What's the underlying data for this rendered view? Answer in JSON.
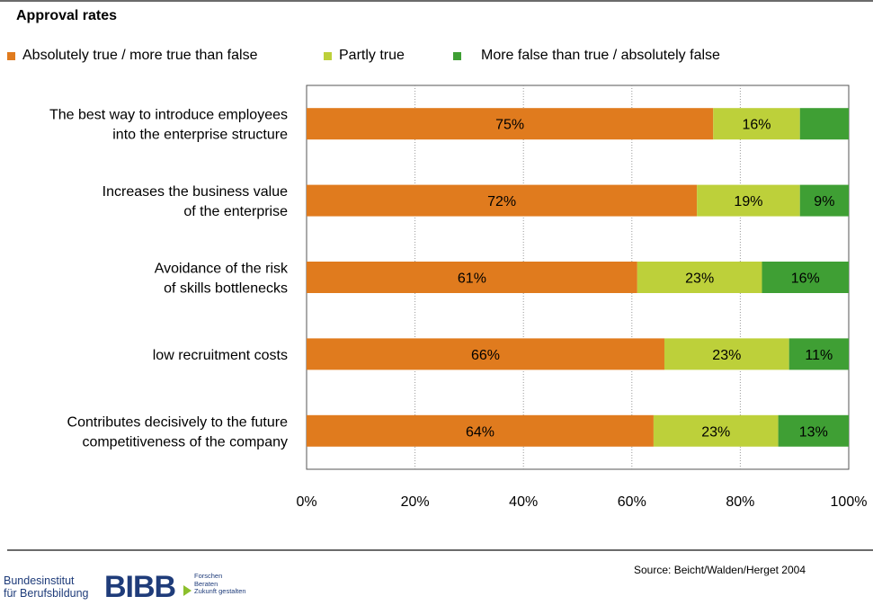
{
  "chart_data": {
    "type": "bar",
    "orientation": "horizontal",
    "stacked": true,
    "title": "Approval rates",
    "categories": [
      [
        "The best way to introduce employees",
        "into the enterprise structure"
      ],
      [
        "Increases the business value",
        "of the enterprise"
      ],
      [
        "Avoidance of the risk",
        "of skills bottlenecks"
      ],
      [
        "low recruitment costs"
      ],
      [
        "Contributes decisively to the future",
        "competitiveness of the company"
      ]
    ],
    "series": [
      {
        "name": "Absolutely true / more true than false",
        "color": "#e07b1e",
        "values": [
          75,
          72,
          61,
          66,
          64
        ],
        "labels": [
          "75%",
          "72%",
          "61%",
          "66%",
          "64%"
        ]
      },
      {
        "name": "Partly true",
        "color": "#bdd03a",
        "values": [
          16,
          19,
          23,
          23,
          23
        ],
        "labels": [
          "16%",
          "19%",
          "23%",
          "23%",
          "23%"
        ]
      },
      {
        "name": "More false than true / absolutely false",
        "color": "#3f9f34",
        "values": [
          9,
          9,
          16,
          11,
          13
        ],
        "labels": [
          "",
          "9%",
          "16%",
          "11%",
          "13%"
        ]
      }
    ],
    "xlim": [
      0,
      100
    ],
    "xticks": [
      "0%",
      "20%",
      "40%",
      "60%",
      "80%",
      "100%"
    ],
    "grid": true,
    "legend": "top"
  },
  "footer": {
    "source": "Source: Beicht/Walden/Herget 2004",
    "logo": {
      "org_line1": "Bundesinstitut",
      "org_line2": "für Berufsbildung",
      "brand": "BIBB",
      "tag1": "Forschen",
      "tag2": "Beraten",
      "tag3": "Zukunft gestalten"
    }
  }
}
